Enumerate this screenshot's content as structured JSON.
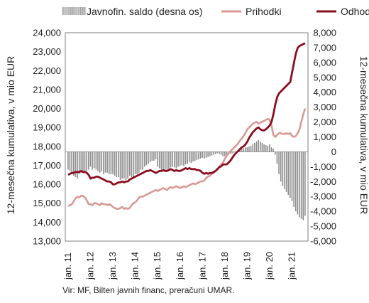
{
  "chart_data": {
    "type": "bar+line",
    "legend": [
      {
        "label": "Javnofin. saldo (desna os)",
        "type": "bar",
        "color": "#8c8c8c"
      },
      {
        "label": "Prihodki",
        "type": "line",
        "color": "#d99a95"
      },
      {
        "label": "Odhodki",
        "type": "line",
        "color": "#8b0e1e"
      }
    ],
    "legend_position": "top",
    "ylabel_left": "12-mesečna kumulativa, v mio EUR",
    "ylabel_right": "12-mesečna kumulativa, v mio EUR",
    "ylim_left": [
      13000,
      24000
    ],
    "ylim_right": [
      -6000,
      8000
    ],
    "yticks_left": [
      "24,000",
      "23,000",
      "22,000",
      "21,000",
      "20,000",
      "19,000",
      "18,000",
      "17,000",
      "16,000",
      "15,000",
      "14,000",
      "13,000"
    ],
    "yticks_right": [
      "8,000",
      "7,000",
      "6,000",
      "5,000",
      "4,000",
      "3,000",
      "2,000",
      "1,000",
      "0",
      "-1,000",
      "-2,000",
      "-3,000",
      "-4,000",
      "-5,000",
      "-6,000"
    ],
    "xticks": [
      "jan. 11",
      "jan. 12",
      "jan. 13",
      "jan. 14",
      "jan. 15",
      "jan. 16",
      "jan. 17",
      "jan. 18",
      "jan. 19",
      "jan. 20",
      "jan. 21"
    ],
    "x_start": "2011-01",
    "x_end": "2021-08",
    "series": [
      {
        "name": "Javnofin. saldo (desna os)",
        "axis": "right",
        "type": "bar",
        "values": [
          -1200,
          -1300,
          -1400,
          -1600,
          -1700,
          -1800,
          -1500,
          -1400,
          -1300,
          -1400,
          -1300,
          -1200,
          -1000,
          -1200,
          -1100,
          -1200,
          -1300,
          -1400,
          -1300,
          -1500,
          -1400,
          -1400,
          -1500,
          -1500,
          -1500,
          -1600,
          -1700,
          -1700,
          -1900,
          -1800,
          -1800,
          -1900,
          -1800,
          -1600,
          -1700,
          -1700,
          -1500,
          -1500,
          -1400,
          -1200,
          -1200,
          -1000,
          -900,
          -800,
          -700,
          -600,
          -600,
          -500,
          -1000,
          -1100,
          -1200,
          -1150,
          -1250,
          -1200,
          -1150,
          -1050,
          -1000,
          -1050,
          -1100,
          -1000,
          -950,
          -900,
          -950,
          -850,
          -800,
          -700,
          -750,
          -650,
          -600,
          -550,
          -500,
          -450,
          -400,
          -450,
          -400,
          -350,
          -300,
          -250,
          -200,
          -150,
          -100,
          -150,
          -200,
          -300,
          -300,
          -250,
          -200,
          -150,
          -100,
          -50,
          0,
          100,
          150,
          200,
          250,
          300,
          300,
          350,
          400,
          500,
          600,
          700,
          800,
          700,
          600,
          500,
          450,
          400,
          500,
          300,
          200,
          -200,
          -800,
          -1500,
          -2000,
          -2300,
          -2500,
          -2700,
          -2900,
          -3100,
          -3300,
          -3700,
          -4000,
          -4200,
          -4400,
          -4500,
          -4600,
          -4300
        ]
      },
      {
        "name": "Prihodki",
        "axis": "left",
        "type": "line",
        "values": [
          14850,
          14900,
          14950,
          15100,
          15250,
          15350,
          15300,
          15400,
          15380,
          15300,
          15150,
          14950,
          14950,
          14900,
          15000,
          15000,
          14950,
          14900,
          15000,
          14950,
          14950,
          14900,
          14950,
          14900,
          14800,
          14750,
          14700,
          14700,
          14750,
          14800,
          14700,
          14750,
          14700,
          14750,
          14900,
          15000,
          15050,
          15150,
          15300,
          15350,
          15350,
          15400,
          15450,
          15500,
          15550,
          15600,
          15650,
          15700,
          15650,
          15700,
          15750,
          15800,
          15750,
          15700,
          15800,
          15850,
          15800,
          15850,
          15900,
          15850,
          15800,
          15850,
          15900,
          15850,
          15900,
          15950,
          16000,
          16050,
          16000,
          16050,
          16100,
          16150,
          16150,
          16200,
          16350,
          16400,
          16450,
          16550,
          16600,
          16700,
          16800,
          16900,
          17050,
          17150,
          17350,
          17500,
          17650,
          17750,
          17850,
          17950,
          18050,
          18150,
          18300,
          18400,
          18550,
          18700,
          18900,
          19000,
          19100,
          19200,
          19250,
          19300,
          19200,
          19250,
          19300,
          19350,
          19400,
          19450,
          19400,
          19100,
          18600,
          18500,
          18600,
          18700,
          18700,
          18650,
          18650,
          18700,
          18650,
          18700,
          18550,
          18500,
          18550,
          18700,
          18900,
          19300,
          19700,
          20000
        ]
      },
      {
        "name": "Odhodki",
        "axis": "left",
        "type": "line",
        "values": [
          16500,
          16550,
          16600,
          16600,
          16650,
          16650,
          16650,
          16700,
          16650,
          16650,
          16600,
          16500,
          16300,
          16350,
          16350,
          16400,
          16400,
          16350,
          16300,
          16250,
          16200,
          16150,
          16150,
          16100,
          16000,
          16000,
          16050,
          16100,
          16100,
          16150,
          16100,
          16150,
          16150,
          16250,
          16300,
          16350,
          16400,
          16450,
          16500,
          16550,
          16600,
          16650,
          16700,
          16700,
          16750,
          16700,
          16650,
          16600,
          16650,
          16700,
          16700,
          16750,
          16700,
          16700,
          16750,
          16800,
          16750,
          16700,
          16750,
          16700,
          16700,
          16750,
          16800,
          16850,
          16800,
          16850,
          16800,
          16800,
          16800,
          16750,
          16750,
          16700,
          16600,
          16550,
          16600,
          16550,
          16600,
          16600,
          16650,
          16700,
          16800,
          16900,
          16950,
          17050,
          17050,
          17050,
          17150,
          17250,
          17400,
          17550,
          17650,
          17750,
          17850,
          17950,
          18000,
          18100,
          18250,
          18450,
          18600,
          18750,
          18850,
          18950,
          19000,
          18900,
          18850,
          18850,
          18900,
          19000,
          19100,
          19300,
          19700,
          20200,
          20600,
          20800,
          20900,
          21000,
          21100,
          21200,
          21300,
          21400,
          21900,
          22400,
          22900,
          23200,
          23300,
          23350,
          23400,
          23450
        ]
      }
    ],
    "zero_line_right": 0
  },
  "footer": {
    "source": "Vir: MF, Bilten javnih financ, preračuni UMAR."
  }
}
